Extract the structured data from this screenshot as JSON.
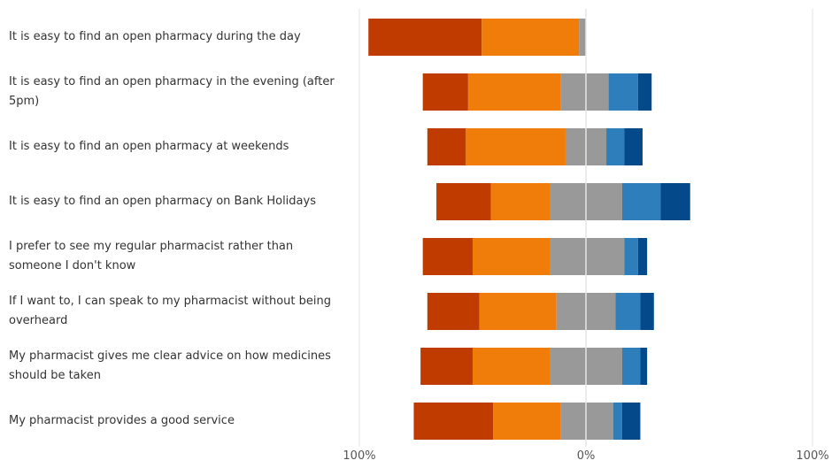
{
  "chart_data": {
    "type": "bar",
    "orientation": "horizontal",
    "stacked": "diverging",
    "title": "",
    "xlabel": "",
    "ylabel": "",
    "xlim": [
      -100,
      100
    ],
    "x_ticks": [
      {
        "value": -100,
        "label": "100%"
      },
      {
        "value": 0,
        "label": "0%"
      },
      {
        "value": 100,
        "label": "100%"
      }
    ],
    "grid": true,
    "legend": "none",
    "categories": [
      "It is easy to find an open pharmacy during the day",
      "It is easy to find an open pharmacy in the evening (after 5pm)",
      "It is easy to find an open pharmacy at weekends",
      "It is easy to find an open pharmacy on Bank Holidays",
      "I prefer to see my regular pharmacist rather than someone I don't know",
      "If I want to, I can speak to my pharmacist without being overheard",
      "My pharmacist gives me clear advice on how medicines should be taken",
      "My pharmacist provides a good service"
    ],
    "colors": [
      "#bf3b00",
      "#f07d0a",
      "#999999",
      "#2f7ebc",
      "#044a8a"
    ],
    "series": [
      {
        "values": [
          50,
          20,
          17,
          24,
          22,
          23,
          23,
          35
        ]
      },
      {
        "values": [
          43,
          41,
          44,
          26,
          34,
          34,
          34,
          30
        ]
      },
      {
        "values": [
          3,
          11,
          9,
          16,
          16,
          13,
          16,
          11
        ]
      },
      {
        "values": [
          0,
          10,
          9,
          16,
          17,
          13,
          16,
          12
        ]
      },
      {
        "values": [
          0,
          13,
          8,
          17,
          6,
          11,
          8,
          4
        ]
      },
      {
        "values": [
          0,
          6,
          8,
          13,
          4,
          6,
          3,
          8
        ]
      }
    ],
    "series_layout_note_removed": true
  }
}
